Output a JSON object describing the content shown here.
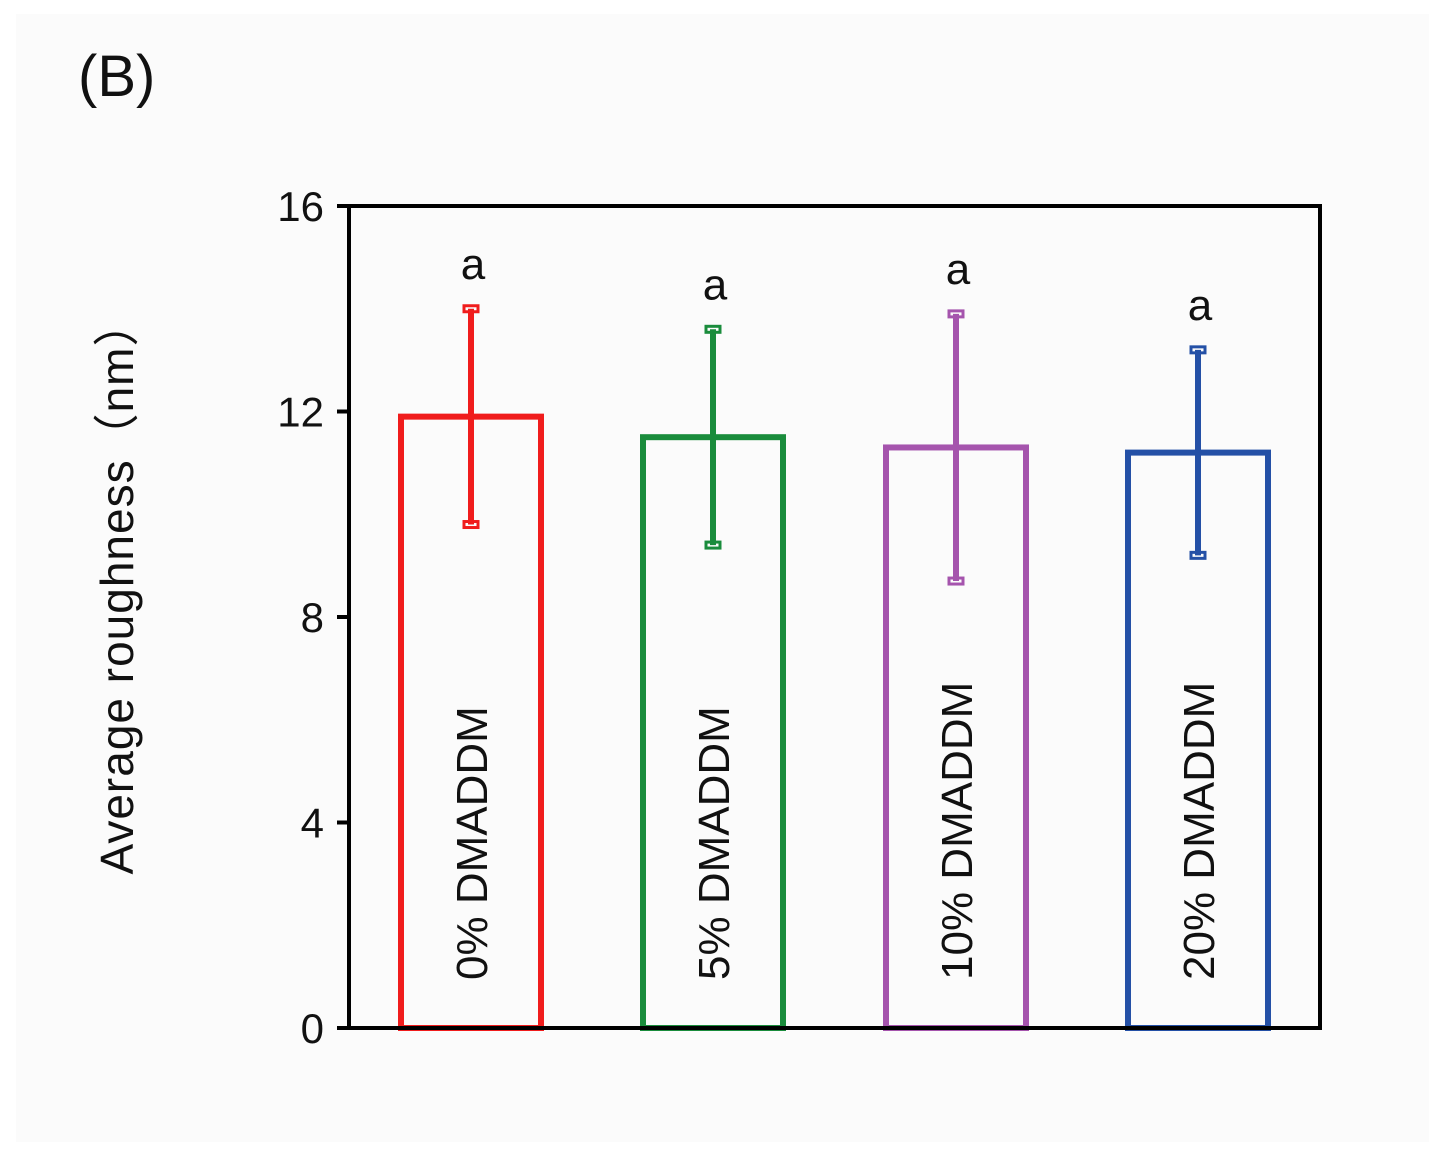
{
  "figure": {
    "panel_label": "(B)"
  },
  "colors": {
    "background": "#fbfbfb",
    "axis": "#000000",
    "bar_0": "#f01c1c",
    "bar_5": "#1a8c3c",
    "bar_10": "#a554ad",
    "bar_20": "#2450a6"
  },
  "chart_data": {
    "type": "bar",
    "title": "",
    "xlabel": "",
    "ylabel": "Average  roughness（nm）",
    "ylim": [
      0,
      16
    ],
    "yticks": [
      0,
      4,
      8,
      12,
      16
    ],
    "grid": false,
    "legend": "none",
    "bar_style": "outline",
    "categories": [
      "0% DMADDM",
      "5% DMADDM",
      "10% DMADDM",
      "20% DMADDM"
    ],
    "values": [
      11.9,
      11.5,
      11.3,
      11.2
    ],
    "errors": [
      2.1,
      2.1,
      2.6,
      2.0
    ],
    "significance": [
      "a",
      "a",
      "a",
      "a"
    ],
    "colors": [
      "#f01c1c",
      "#1a8c3c",
      "#a554ad",
      "#2450a6"
    ]
  }
}
